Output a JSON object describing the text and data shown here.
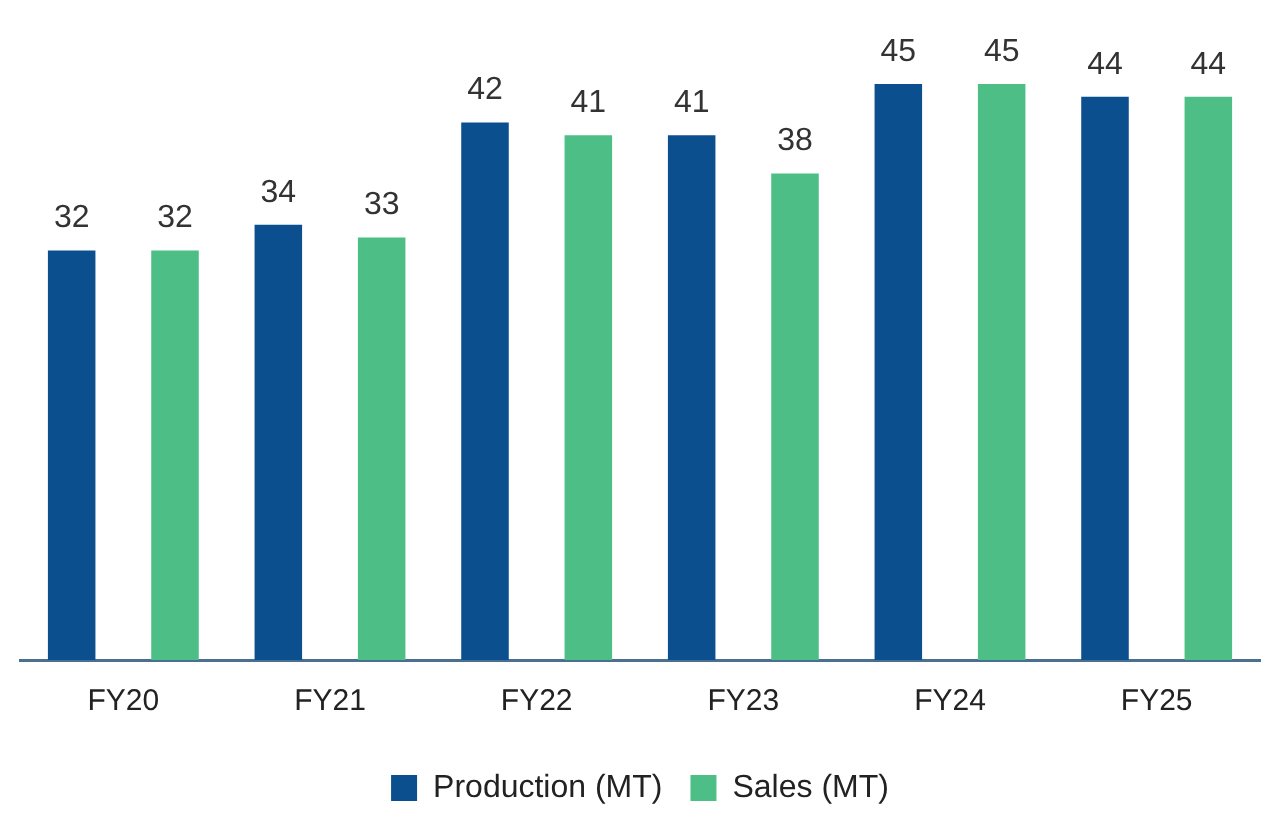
{
  "chart_data": {
    "type": "bar",
    "categories": [
      "FY20",
      "FY21",
      "FY22",
      "FY23",
      "FY24",
      "FY25"
    ],
    "series": [
      {
        "name": "Production (MT)",
        "color": "#0b4f8e",
        "values": [
          32,
          34,
          42,
          41,
          45,
          44
        ]
      },
      {
        "name": "Sales (MT)",
        "color": "#4dbf86",
        "values": [
          32,
          33,
          41,
          38,
          45,
          44
        ]
      }
    ],
    "data_labels": true,
    "legend": "bottom",
    "grid": false,
    "tick_labels": "x"
  }
}
